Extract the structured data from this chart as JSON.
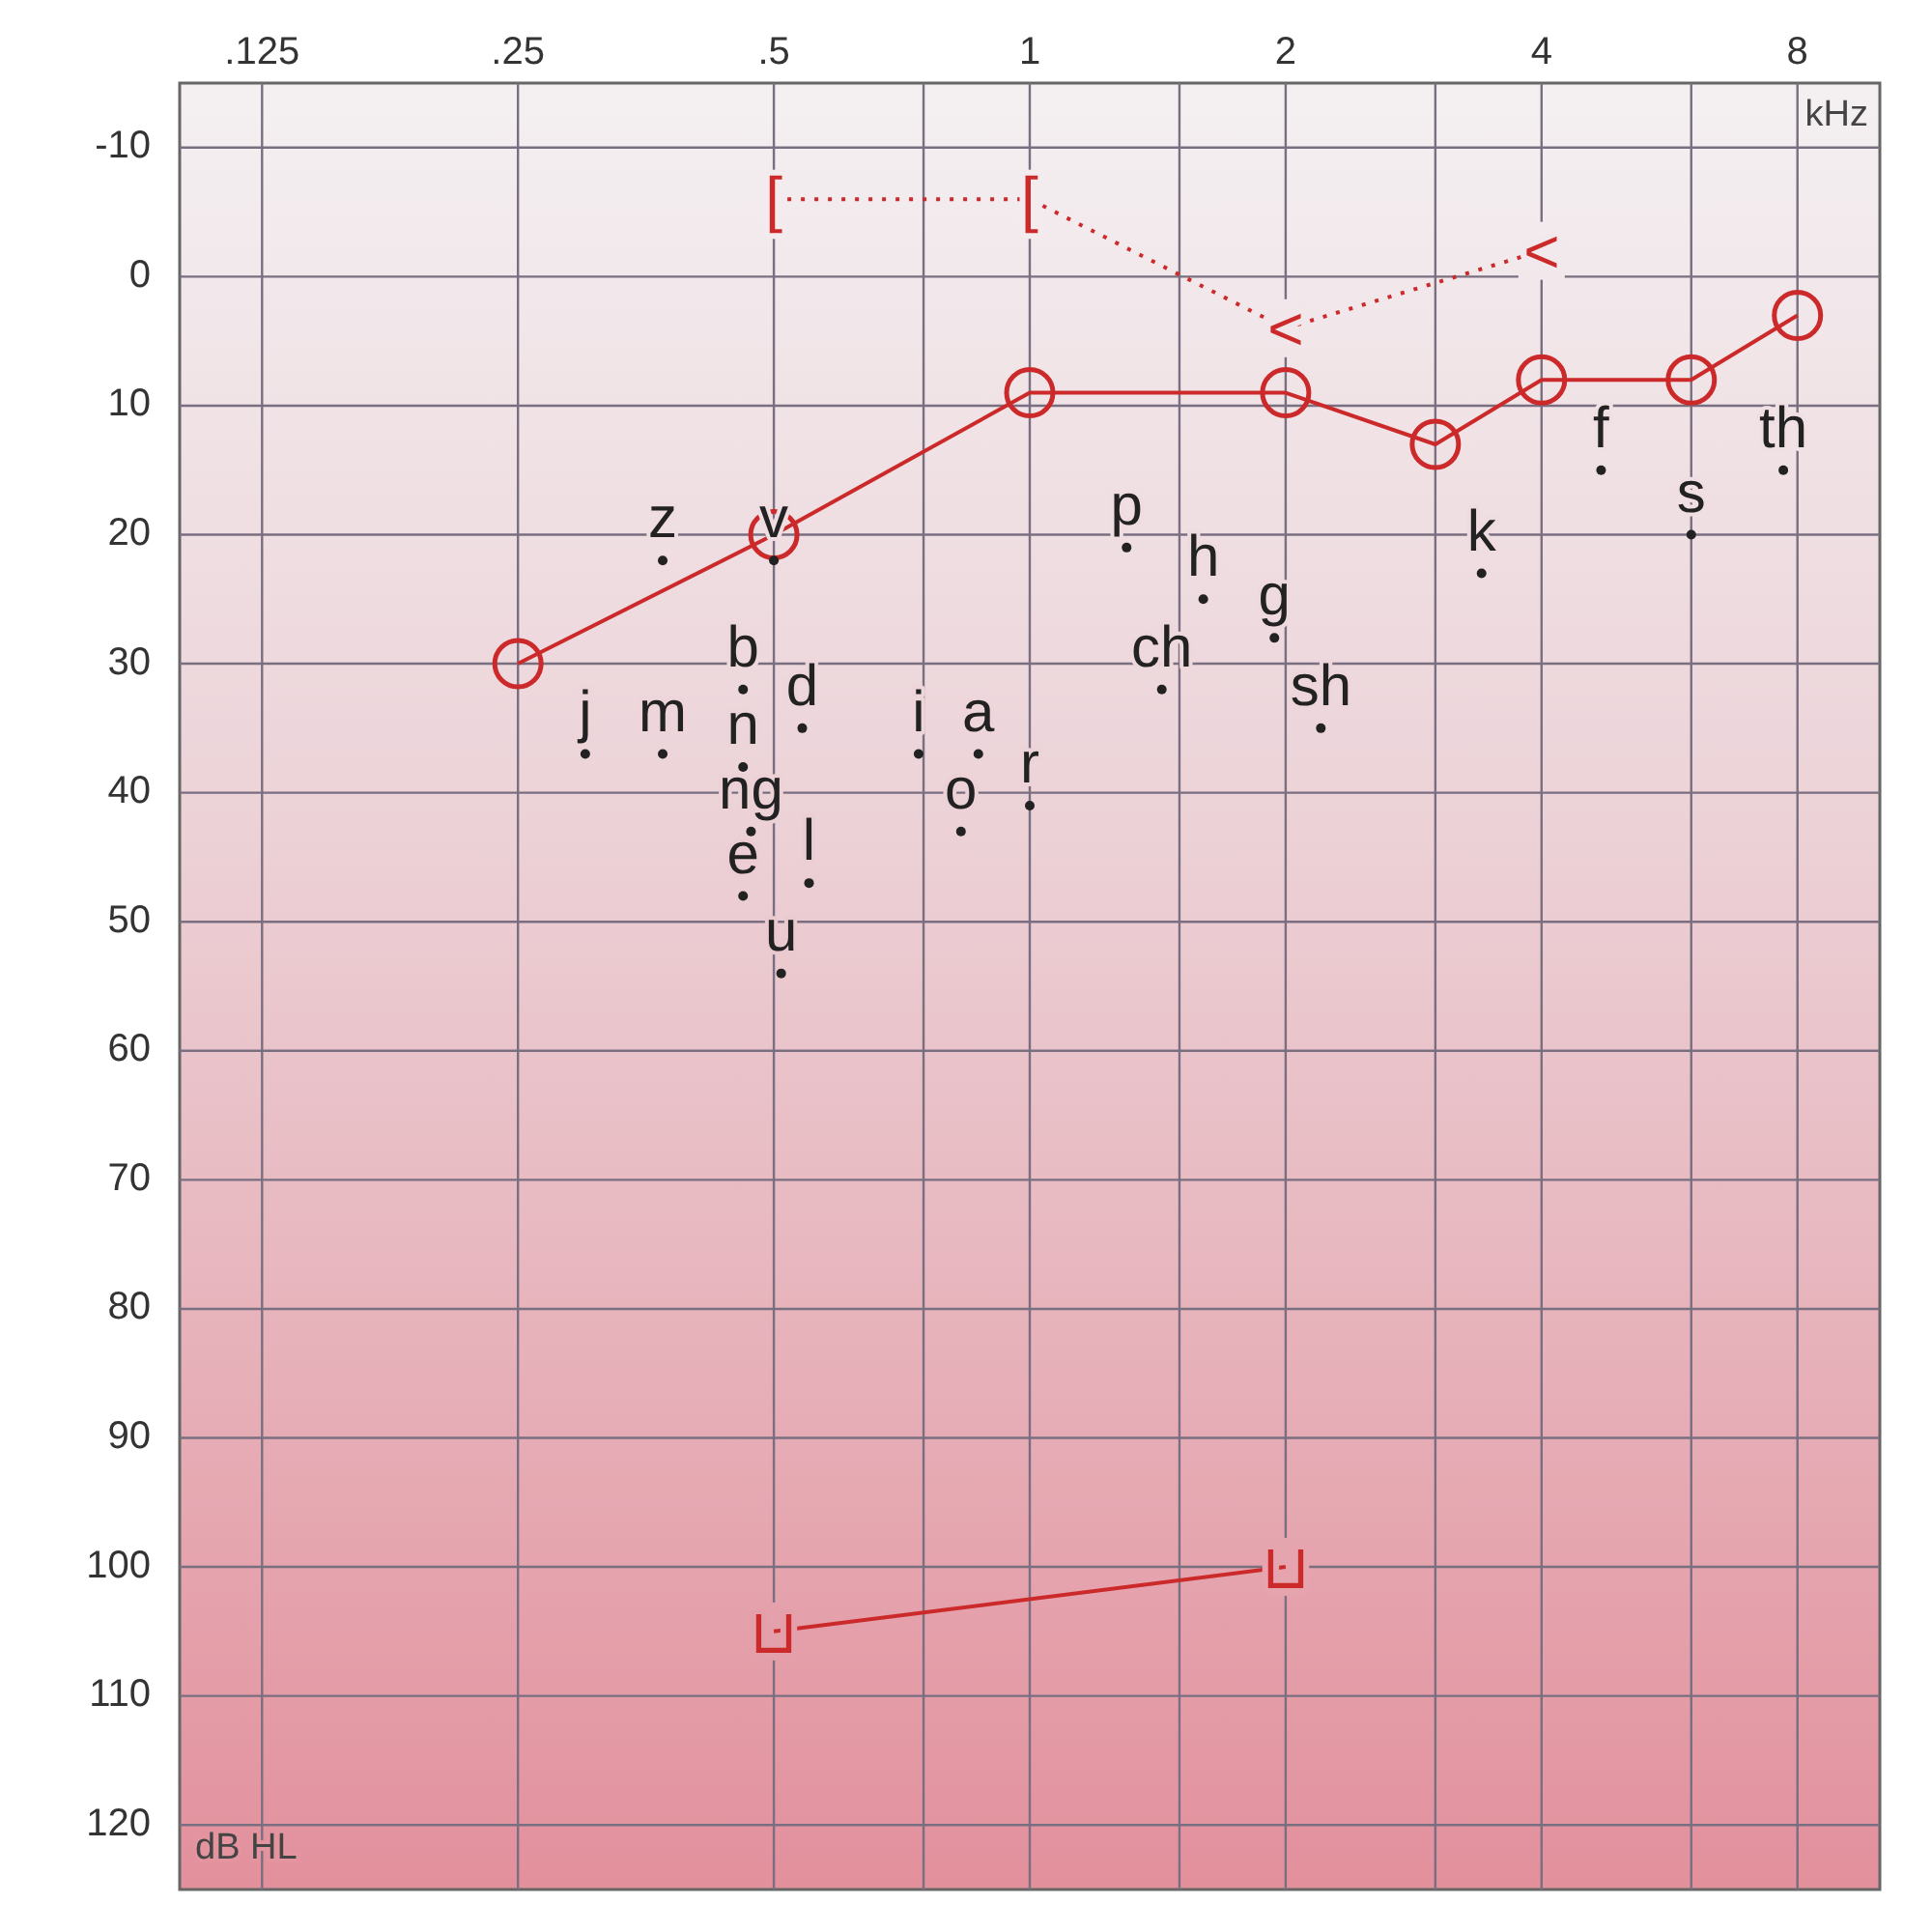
{
  "chart_data": {
    "type": "line",
    "xlabel": "kHz",
    "ylabel": "dB HL",
    "log": "x",
    "grid": true,
    "xlim": [
      0.1,
      10
    ],
    "ylim": [
      125,
      -15
    ],
    "xticks": [
      {
        "value": 0.125,
        "label": ".125"
      },
      {
        "value": 0.25,
        "label": ".25"
      },
      {
        "value": 0.5,
        "label": ".5"
      },
      {
        "value": 0.75,
        "label": null
      },
      1,
      {
        "value": 1.5,
        "label": null
      },
      2,
      {
        "value": 3,
        "label": null
      },
      4,
      {
        "value": 6,
        "label": null
      },
      8
    ],
    "yticks": [
      -10,
      0,
      10,
      20,
      30,
      40,
      50,
      60,
      70,
      80,
      90,
      100,
      110,
      120
    ],
    "series": [
      {
        "x": [
          0.25,
          0.5,
          1,
          2,
          3,
          4,
          6,
          8
        ],
        "values": [
          30,
          20,
          9,
          9,
          13,
          8,
          8,
          3
        ],
        "color": "#cc2a2a",
        "marker": "circle",
        "line_style": "solid"
      },
      {
        "x": [
          0.5,
          1,
          2,
          4
        ],
        "values": [
          -6,
          -6,
          4,
          -2
        ],
        "color": "#cc2a2a",
        "marker": "none",
        "line_style": "dotted",
        "value_labels": [
          "[",
          "[",
          "<",
          "<"
        ]
      },
      {
        "x": [
          0.5,
          2
        ],
        "values": [
          105,
          100
        ],
        "color": "#cc2a2a",
        "marker": "none",
        "line_style": "solid",
        "value_labels": [
          "⊔",
          "⊔"
        ]
      },
      {
        "type": "scatter",
        "marker": "circle",
        "color": "#222222",
        "x": [
          0.37,
          0.5,
          0.3,
          0.37,
          0.46,
          0.54,
          0.46,
          0.47,
          0.46,
          0.55,
          0.51,
          0.74,
          0.87,
          0.83,
          1.0,
          1.3,
          1.6,
          1.94,
          1.43,
          2.2,
          3.4,
          4.7,
          6,
          7.7
        ],
        "values": [
          22,
          22,
          37,
          37,
          32,
          35,
          38,
          43,
          48,
          47,
          54,
          37,
          37,
          43,
          41,
          21,
          25,
          28,
          32,
          35,
          23,
          15,
          20,
          15
        ],
        "value_labels": [
          "z",
          "v",
          "j",
          "m",
          "b",
          "d",
          "n",
          "ng",
          "e",
          "l",
          "u",
          "i",
          "a",
          "o",
          "r",
          "p",
          "h",
          "g",
          "ch",
          "sh",
          "k",
          "f",
          "s",
          "th"
        ]
      }
    ]
  }
}
